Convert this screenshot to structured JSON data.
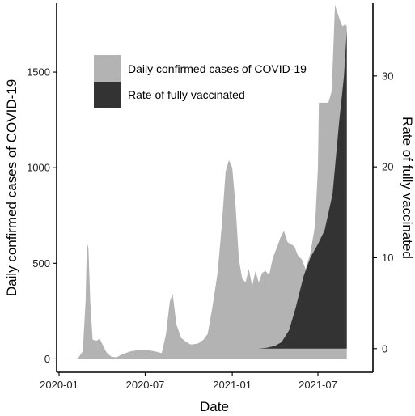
{
  "chart_data": {
    "type": "area",
    "xlabel": "Date",
    "x_ticks": [
      "2020-01",
      "2020-07",
      "2021-01",
      "2021-07"
    ],
    "y_left": {
      "label": "Daily confirmed cases of COVID-19",
      "ticks": [
        "0",
        "500",
        "1000",
        "1500"
      ],
      "range": [
        -70,
        1860
      ]
    },
    "y_right": {
      "label": "Rate of fully vaccinated",
      "ticks": [
        "0",
        "10",
        "20",
        "30"
      ],
      "range": [
        -2.6,
        38
      ]
    },
    "legend_position": "top-center",
    "legend": [
      {
        "label": "Daily confirmed cases of COVID-19",
        "color": "#b3b3b3"
      },
      {
        "label": "Rate of fully vaccinated",
        "color": "#333333"
      }
    ],
    "series": [
      {
        "name": "Daily confirmed cases of COVID-19",
        "axis": "left",
        "color": "#b3b3b3",
        "points": [
          [
            "2020-01-20",
            0
          ],
          [
            "2020-02-10",
            3
          ],
          [
            "2020-02-20",
            40
          ],
          [
            "2020-02-26",
            300
          ],
          [
            "2020-02-29",
            610
          ],
          [
            "2020-03-03",
            580
          ],
          [
            "2020-03-07",
            300
          ],
          [
            "2020-03-12",
            100
          ],
          [
            "2020-03-20",
            95
          ],
          [
            "2020-03-27",
            105
          ],
          [
            "2020-04-02",
            75
          ],
          [
            "2020-04-10",
            35
          ],
          [
            "2020-04-20",
            12
          ],
          [
            "2020-05-01",
            8
          ],
          [
            "2020-05-10",
            20
          ],
          [
            "2020-05-20",
            30
          ],
          [
            "2020-06-01",
            40
          ],
          [
            "2020-06-15",
            45
          ],
          [
            "2020-07-01",
            48
          ],
          [
            "2020-07-20",
            40
          ],
          [
            "2020-08-05",
            30
          ],
          [
            "2020-08-14",
            130
          ],
          [
            "2020-08-22",
            300
          ],
          [
            "2020-08-28",
            340
          ],
          [
            "2020-09-05",
            180
          ],
          [
            "2020-09-15",
            110
          ],
          [
            "2020-09-25",
            90
          ],
          [
            "2020-10-05",
            75
          ],
          [
            "2020-10-20",
            80
          ],
          [
            "2020-11-01",
            100
          ],
          [
            "2020-11-10",
            130
          ],
          [
            "2020-11-20",
            270
          ],
          [
            "2020-12-01",
            450
          ],
          [
            "2020-12-10",
            700
          ],
          [
            "2020-12-18",
            980
          ],
          [
            "2020-12-25",
            1040
          ],
          [
            "2021-01-01",
            1000
          ],
          [
            "2021-01-08",
            800
          ],
          [
            "2021-01-15",
            520
          ],
          [
            "2021-01-22",
            420
          ],
          [
            "2021-01-29",
            400
          ],
          [
            "2021-02-05",
            470
          ],
          [
            "2021-02-12",
            380
          ],
          [
            "2021-02-19",
            460
          ],
          [
            "2021-02-26",
            400
          ],
          [
            "2021-03-05",
            450
          ],
          [
            "2021-03-12",
            460
          ],
          [
            "2021-03-20",
            440
          ],
          [
            "2021-03-28",
            530
          ],
          [
            "2021-04-05",
            580
          ],
          [
            "2021-04-12",
            630
          ],
          [
            "2021-04-20",
            670
          ],
          [
            "2021-04-28",
            610
          ],
          [
            "2021-05-05",
            600
          ],
          [
            "2021-05-12",
            590
          ],
          [
            "2021-05-20",
            540
          ],
          [
            "2021-05-28",
            520
          ],
          [
            "2021-06-05",
            470
          ],
          [
            "2021-06-15",
            550
          ],
          [
            "2021-06-25",
            700
          ],
          [
            "2021-07-01",
            1000
          ],
          [
            "2021-07-03",
            1340
          ],
          [
            "2021-07-08",
            1340
          ],
          [
            "2021-07-15",
            1340
          ],
          [
            "2021-07-23",
            1340
          ],
          [
            "2021-07-30",
            1400
          ],
          [
            "2021-08-03",
            1650
          ],
          [
            "2021-08-06",
            1850
          ],
          [
            "2021-08-10",
            1820
          ],
          [
            "2021-08-14",
            1790
          ],
          [
            "2021-08-18",
            1760
          ],
          [
            "2021-08-22",
            1740
          ],
          [
            "2021-08-28",
            1750
          ],
          [
            "2021-08-31",
            1740
          ]
        ]
      },
      {
        "name": "Rate of fully vaccinated",
        "axis": "right",
        "color": "#333333",
        "points": [
          [
            "2021-02-26",
            0
          ],
          [
            "2021-03-15",
            0.1
          ],
          [
            "2021-04-01",
            0.3
          ],
          [
            "2021-04-15",
            0.7
          ],
          [
            "2021-05-01",
            2
          ],
          [
            "2021-05-15",
            4.5
          ],
          [
            "2021-06-01",
            8
          ],
          [
            "2021-06-15",
            10
          ],
          [
            "2021-07-01",
            11.5
          ],
          [
            "2021-07-15",
            13
          ],
          [
            "2021-08-01",
            17
          ],
          [
            "2021-08-15",
            25
          ],
          [
            "2021-08-25",
            30
          ],
          [
            "2021-08-31",
            35
          ]
        ]
      }
    ]
  }
}
